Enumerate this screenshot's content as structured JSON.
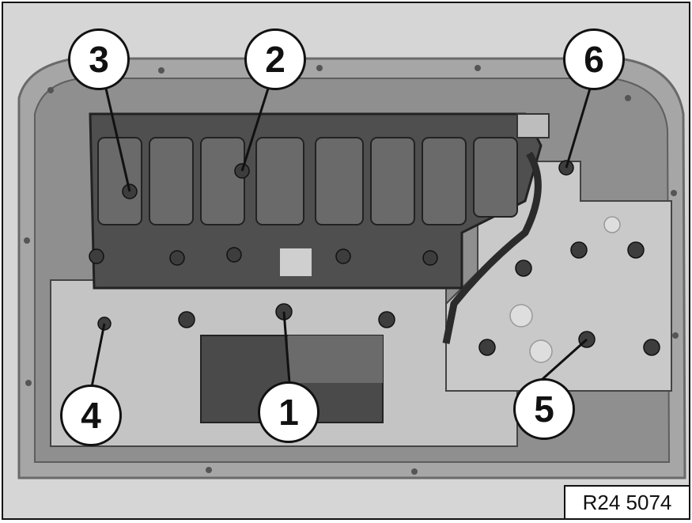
{
  "callouts": [
    {
      "label": "1"
    },
    {
      "label": "2"
    },
    {
      "label": "3"
    },
    {
      "label": "4"
    },
    {
      "label": "5"
    },
    {
      "label": "6"
    }
  ],
  "reference_code": "R24 5074",
  "icons": [
    "transmission-photo"
  ],
  "colors": {
    "background": "#cfcfcf",
    "housing": "#9a9a9a",
    "solenoid_block": "#4d4d4d",
    "plate": "#c9c9c9",
    "outline": "#111111"
  }
}
